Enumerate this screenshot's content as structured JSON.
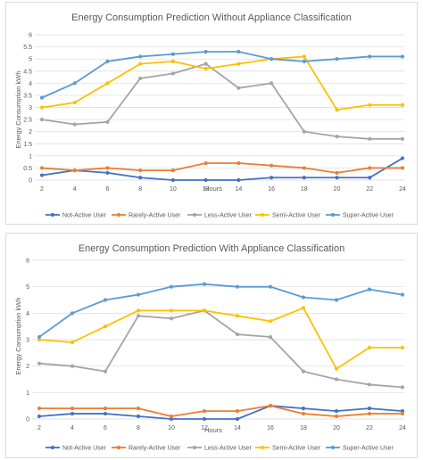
{
  "chart_data": [
    {
      "type": "line",
      "title": "Energy Consumption Prediction Without Appliance Classification",
      "xlabel": "Hours",
      "ylabel": "Energy Consumption kWh",
      "x": [
        2,
        4,
        6,
        8,
        10,
        12,
        14,
        16,
        18,
        20,
        22,
        24
      ],
      "yticks": [
        0,
        0.5,
        1,
        1.5,
        2,
        2.5,
        3,
        3.5,
        4,
        4.5,
        5,
        5.5,
        6
      ],
      "ytick_labels": [
        "0",
        "0.5",
        "1",
        "1.5",
        "2",
        "2.5",
        "3",
        "3.5",
        "4",
        "4.5",
        "5",
        "5.5",
        "6"
      ],
      "ylim": [
        0,
        6
      ],
      "grid": true,
      "legend": "bottom",
      "series": [
        {
          "name": "Not-Active User",
          "color": "#4472c4",
          "values": [
            0.2,
            0.4,
            0.3,
            0.1,
            0.0,
            0.0,
            0.0,
            0.1,
            0.1,
            0.1,
            0.1,
            0.9
          ]
        },
        {
          "name": "Rarely-Active User",
          "color": "#ed7d31",
          "values": [
            0.5,
            0.4,
            0.5,
            0.4,
            0.4,
            0.7,
            0.7,
            0.6,
            0.5,
            0.3,
            0.5,
            0.5
          ]
        },
        {
          "name": "Less-Active User",
          "color": "#a5a5a5",
          "values": [
            2.5,
            2.3,
            2.4,
            4.2,
            4.4,
            4.8,
            3.8,
            4.0,
            2.0,
            1.8,
            1.7,
            1.7
          ]
        },
        {
          "name": "Semi-Active User",
          "color": "#ffc000",
          "values": [
            3.0,
            3.2,
            4.0,
            4.8,
            4.9,
            4.6,
            4.8,
            5.0,
            5.1,
            2.9,
            3.1,
            3.1
          ]
        },
        {
          "name": "Super-Active User",
          "color": "#5b9bd5",
          "values": [
            3.4,
            4.0,
            4.9,
            5.1,
            5.2,
            5.3,
            5.3,
            5.0,
            4.9,
            5.0,
            5.1,
            5.1
          ]
        }
      ]
    },
    {
      "type": "line",
      "title": "Energy Consumption Prediction With Appliance Classification",
      "xlabel": "Hours",
      "ylabel": "Energy Consumption kWh",
      "x": [
        2,
        4,
        6,
        8,
        10,
        12,
        14,
        16,
        18,
        20,
        22,
        24
      ],
      "yticks": [
        0,
        1,
        2,
        3,
        4,
        5,
        6
      ],
      "ytick_labels": [
        "0",
        "1",
        "2",
        "3",
        "4",
        "5",
        "6"
      ],
      "ylim": [
        0,
        6
      ],
      "grid": true,
      "legend": "bottom",
      "series": [
        {
          "name": "Not-Active User",
          "color": "#4472c4",
          "values": [
            0.1,
            0.2,
            0.2,
            0.1,
            0.0,
            0.0,
            0.0,
            0.5,
            0.4,
            0.3,
            0.4,
            0.3
          ]
        },
        {
          "name": "Rarely-Active User",
          "color": "#ed7d31",
          "values": [
            0.4,
            0.4,
            0.4,
            0.4,
            0.1,
            0.3,
            0.3,
            0.5,
            0.2,
            0.1,
            0.2,
            0.2
          ]
        },
        {
          "name": "Less-Active User",
          "color": "#a5a5a5",
          "values": [
            2.1,
            2.0,
            1.8,
            3.9,
            3.8,
            4.1,
            3.2,
            3.1,
            1.8,
            1.5,
            1.3,
            1.2
          ]
        },
        {
          "name": "Semi-Active User",
          "color": "#ffc000",
          "values": [
            3.0,
            2.9,
            3.5,
            4.1,
            4.1,
            4.1,
            3.9,
            3.7,
            4.2,
            1.9,
            2.7,
            2.7
          ]
        },
        {
          "name": "Super-Active User",
          "color": "#5b9bd5",
          "values": [
            3.1,
            4.0,
            4.5,
            4.7,
            5.0,
            5.1,
            5.0,
            5.0,
            4.6,
            4.5,
            4.9,
            4.7
          ]
        }
      ]
    }
  ]
}
